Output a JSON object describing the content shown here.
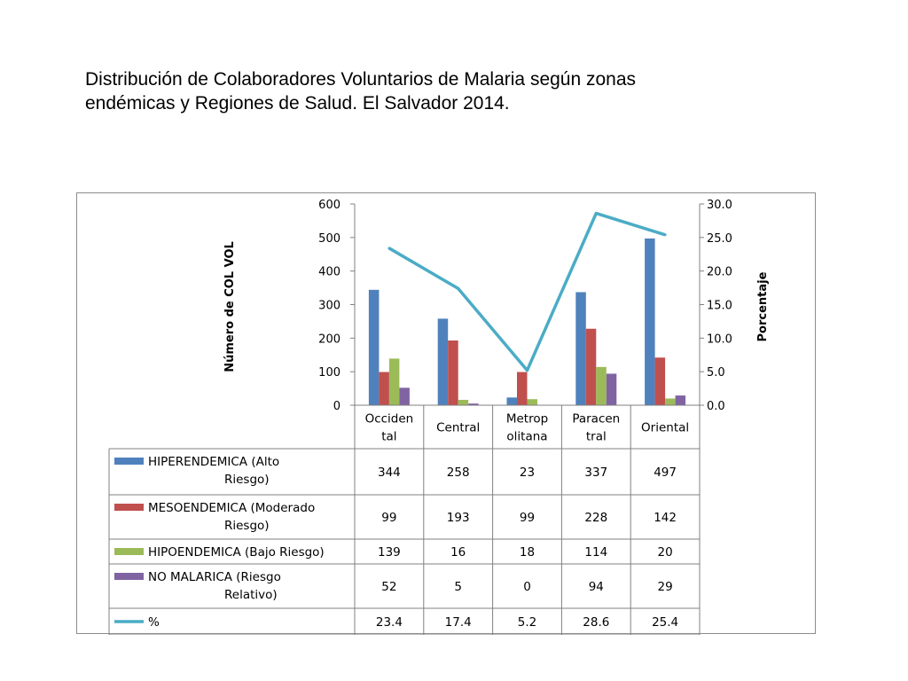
{
  "title_line1": "Distribución de Colaboradores Voluntarios de Malaria según zonas",
  "title_line2": "endémicas y Regiones de Salud. El Salvador 2014.",
  "chart_data": {
    "type": "bar",
    "categories": [
      [
        "Occiden",
        "tal"
      ],
      [
        "Central"
      ],
      [
        "Metrop",
        "olitana"
      ],
      [
        "Paracen",
        "tral"
      ],
      [
        "Oriental"
      ]
    ],
    "ylabel": "Número de COL VOL",
    "y2label": "Porcentaje",
    "ylim": [
      0,
      600
    ],
    "yticks": [
      "0",
      "100",
      "200",
      "300",
      "400",
      "500",
      "600"
    ],
    "y2lim": [
      0,
      30
    ],
    "y2ticks": [
      "0.0",
      "5.0",
      "10.0",
      "15.0",
      "20.0",
      "25.0",
      "30.0"
    ],
    "grid": false,
    "legend": "data-table",
    "series": [
      {
        "name": [
          "HIPERENDEMICA (Alto",
          "Riesgo)"
        ],
        "values": [
          344,
          258,
          23,
          337,
          497
        ],
        "labels": [
          "344",
          "258",
          "23",
          "337",
          "497"
        ],
        "color": "#4f81bd",
        "kind": "bar"
      },
      {
        "name": [
          "MESOENDEMICA (Moderado",
          "Riesgo)"
        ],
        "values": [
          99,
          193,
          99,
          228,
          142
        ],
        "labels": [
          "99",
          "193",
          "99",
          "228",
          "142"
        ],
        "color": "#c0504d",
        "kind": "bar"
      },
      {
        "name": [
          "HIPOENDEMICA (Bajo Riesgo)"
        ],
        "values": [
          139,
          16,
          18,
          114,
          20
        ],
        "labels": [
          "139",
          "16",
          "18",
          "114",
          "20"
        ],
        "color": "#9bbb59",
        "kind": "bar"
      },
      {
        "name": [
          "NO MALARICA (Riesgo",
          "Relativo)"
        ],
        "values": [
          52,
          5,
          0,
          94,
          29
        ],
        "labels": [
          "52",
          "5",
          "0",
          "94",
          "29"
        ],
        "color": "#8064a2",
        "kind": "bar"
      },
      {
        "name": [
          "%"
        ],
        "values": [
          23.4,
          17.4,
          5.2,
          28.6,
          25.4
        ],
        "labels": [
          "23.4",
          "17.4",
          "5.2",
          "28.6",
          "25.4"
        ],
        "color": "#4bacc6",
        "kind": "line",
        "axis": "y2"
      }
    ]
  }
}
